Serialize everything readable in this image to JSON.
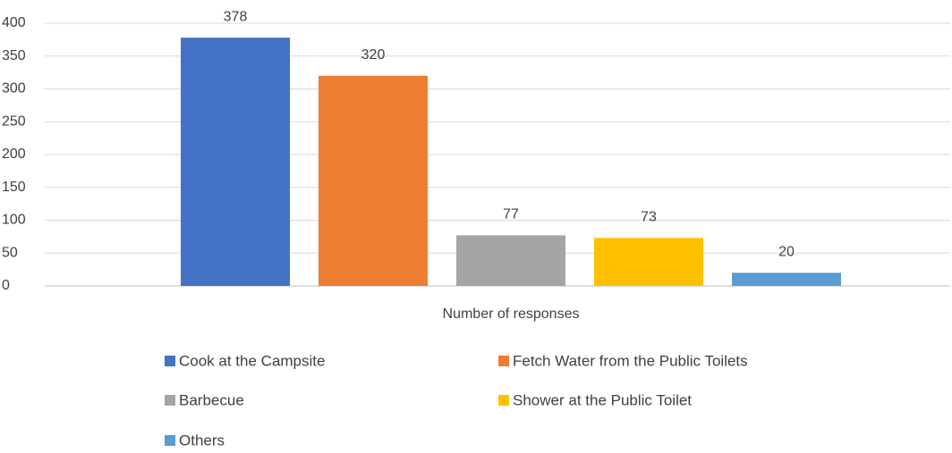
{
  "chart_data": {
    "type": "bar",
    "categories": [
      "Number of responses"
    ],
    "series": [
      {
        "name": "Cook at the Campsite",
        "color": "#4472c4",
        "values": [
          378
        ]
      },
      {
        "name": "Fetch Water from the Public Toilets",
        "color": "#ed7d31",
        "values": [
          320
        ]
      },
      {
        "name": "Barbecue",
        "color": "#a5a5a5",
        "values": [
          77
        ]
      },
      {
        "name": "Shower at the Public Toilet",
        "color": "#ffc000",
        "values": [
          73
        ]
      },
      {
        "name": "Others",
        "color": "#5b9bd5",
        "values": [
          20
        ]
      }
    ],
    "ylim": [
      0,
      400
    ],
    "yticks": [
      0,
      50,
      100,
      150,
      200,
      250,
      300,
      350,
      400
    ],
    "grid": true,
    "data_labels": true,
    "legend": "bottom"
  }
}
